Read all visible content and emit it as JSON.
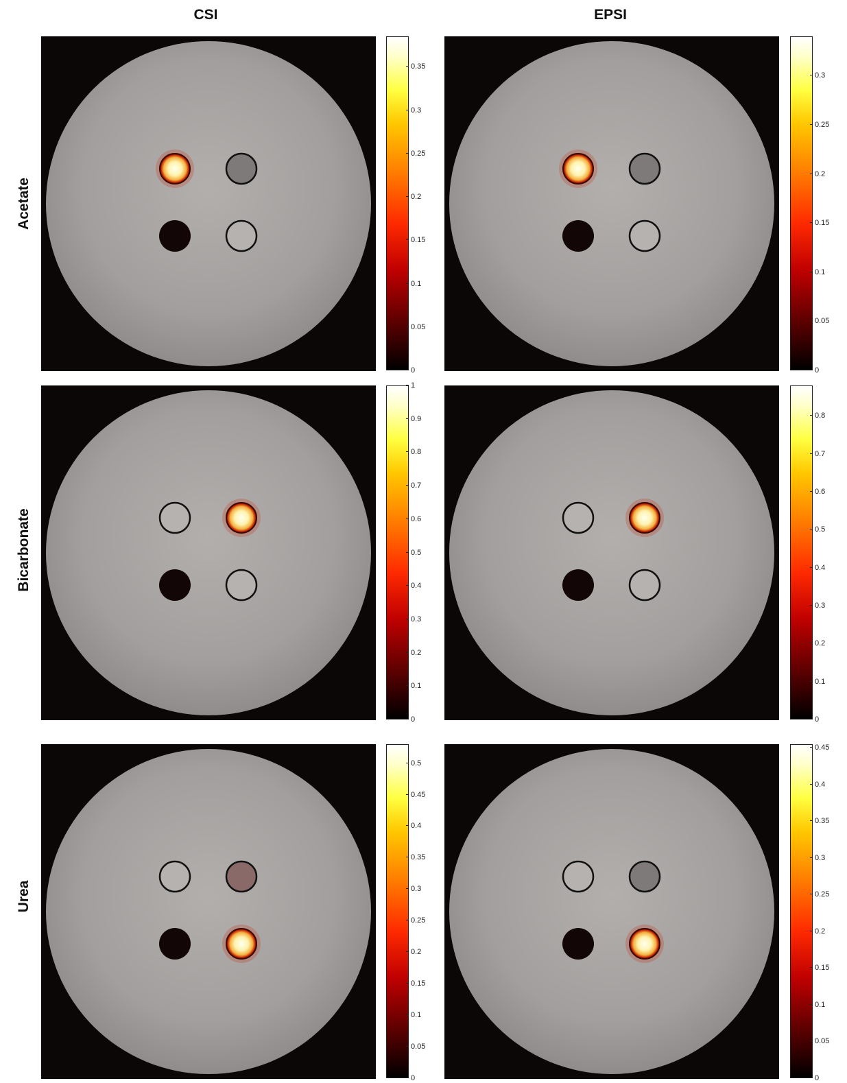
{
  "column_titles": [
    "CSI",
    "EPSI"
  ],
  "row_titles": [
    "Acetate",
    "Bicarbonate",
    "Urea"
  ],
  "colors": {
    "background": "#0b0707",
    "phantom": "#a7a4a3",
    "colormap": "hot"
  },
  "panels": [
    {
      "row": "Acetate",
      "col": "CSI",
      "hot_vial": "top-left",
      "dim_vials": [
        "top-right"
      ],
      "dark_vials": [
        "bottom-left"
      ],
      "light_vials": [
        "bottom-right"
      ]
    },
    {
      "row": "Acetate",
      "col": "EPSI",
      "hot_vial": "top-left",
      "dim_vials": [
        "top-right"
      ],
      "dark_vials": [
        "bottom-left"
      ],
      "light_vials": [
        "bottom-right"
      ]
    },
    {
      "row": "Bicarbonate",
      "col": "CSI",
      "hot_vial": "top-right",
      "dim_vials": [],
      "dark_vials": [
        "bottom-left"
      ],
      "light_vials": [
        "top-left",
        "bottom-right"
      ]
    },
    {
      "row": "Bicarbonate",
      "col": "EPSI",
      "hot_vial": "top-right",
      "dim_vials": [],
      "dark_vials": [
        "bottom-left"
      ],
      "light_vials": [
        "top-left",
        "bottom-right"
      ]
    },
    {
      "row": "Urea",
      "col": "CSI",
      "hot_vial": "bottom-right",
      "dim_vials": [
        "top-right"
      ],
      "dark_vials": [
        "bottom-left"
      ],
      "light_vials": [
        "top-left"
      ]
    },
    {
      "row": "Urea",
      "col": "EPSI",
      "hot_vial": "bottom-right",
      "dim_vials": [
        "top-right"
      ],
      "dark_vials": [
        "bottom-left"
      ],
      "light_vials": [
        "top-left"
      ]
    }
  ],
  "colorbars": [
    {
      "row": "Acetate",
      "col": "CSI",
      "max": 0.385,
      "ticks": [
        "0",
        "0.05",
        "0.1",
        "0.15",
        "0.2",
        "0.25",
        "0.3",
        "0.35"
      ]
    },
    {
      "row": "Acetate",
      "col": "EPSI",
      "max": 0.34,
      "ticks": [
        "0",
        "0.05",
        "0.1",
        "0.15",
        "0.2",
        "0.25",
        "0.3"
      ]
    },
    {
      "row": "Bicarbonate",
      "col": "CSI",
      "max": 1.0,
      "ticks": [
        "0",
        "0.1",
        "0.2",
        "0.3",
        "0.4",
        "0.5",
        "0.6",
        "0.7",
        "0.8",
        "0.9",
        "1"
      ]
    },
    {
      "row": "Bicarbonate",
      "col": "EPSI",
      "max": 0.88,
      "ticks": [
        "0",
        "0.1",
        "0.2",
        "0.3",
        "0.4",
        "0.5",
        "0.6",
        "0.7",
        "0.8"
      ]
    },
    {
      "row": "Urea",
      "col": "CSI",
      "max": 0.53,
      "ticks": [
        "0",
        "0.05",
        "0.1",
        "0.15",
        "0.2",
        "0.25",
        "0.3",
        "0.35",
        "0.4",
        "0.45",
        "0.5"
      ]
    },
    {
      "row": "Urea",
      "col": "EPSI",
      "max": 0.455,
      "ticks": [
        "0",
        "0.05",
        "0.1",
        "0.15",
        "0.2",
        "0.25",
        "0.3",
        "0.35",
        "0.4",
        "0.45"
      ]
    }
  ]
}
